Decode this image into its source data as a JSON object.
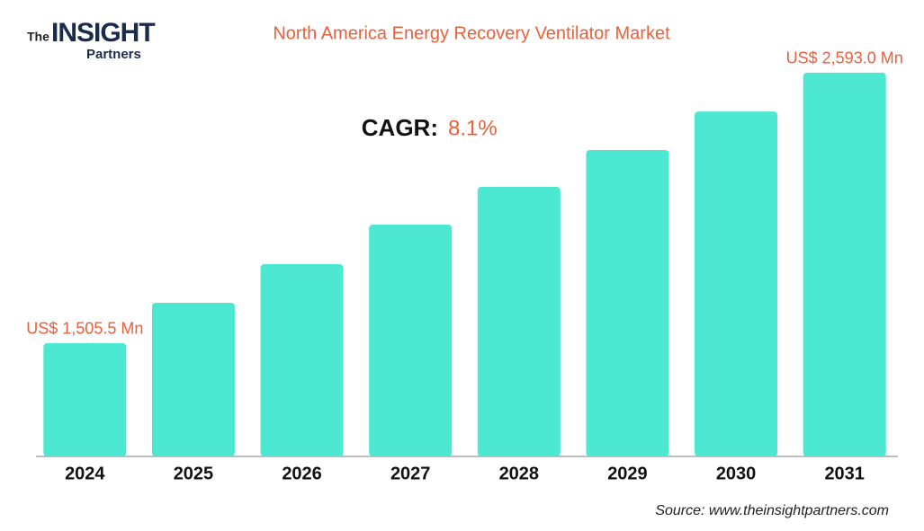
{
  "logo": {
    "the": "The",
    "insight": "INSIGHT",
    "partners": "Partners"
  },
  "chart_data": {
    "type": "bar",
    "title": "North America Energy Recovery Ventilator Market",
    "categories": [
      "2024",
      "2025",
      "2026",
      "2027",
      "2028",
      "2029",
      "2030",
      "2031"
    ],
    "values": [
      1505.5,
      1668,
      1823,
      1982,
      2134,
      2282,
      2437,
      2593.0
    ],
    "value_labels": [
      "US$ 1,505.5 Mn",
      null,
      null,
      null,
      null,
      null,
      null,
      "US$ 2,593.0 Mn"
    ],
    "color": "#4de8d1",
    "ylim": [
      1050,
      2700
    ],
    "cagr_label": "CAGR:",
    "cagr_value": "8.1%",
    "source": "Source: www.theinsightpartners.com"
  }
}
